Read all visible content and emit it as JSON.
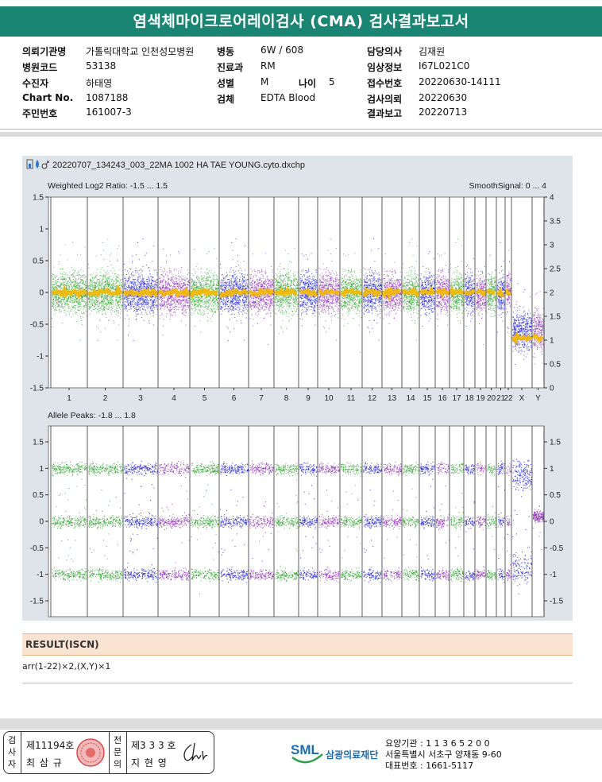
{
  "report": {
    "title": "염색체마이크로어레이검사 (CMA) 검사결과보고서"
  },
  "patient": {
    "rows": [
      [
        {
          "label": "의뢰기관명",
          "value": "가톨릭대학교 인천성모병원"
        },
        {
          "label": "병동",
          "value": "6W / 608"
        },
        {
          "label": "담당의사",
          "value": "김재원"
        }
      ],
      [
        {
          "label": "병원코드",
          "value": "53138"
        },
        {
          "label": "진료과",
          "value": "RM"
        },
        {
          "label": "임상정보",
          "value": "I67L021C0"
        }
      ],
      [
        {
          "label": "수진자",
          "value": "하태영"
        },
        {
          "label": "성별",
          "value": "M"
        },
        {
          "label": "접수번호",
          "value": "20220630-14111"
        }
      ],
      [
        {
          "label": "Chart No.",
          "value": "1087188"
        },
        {
          "label": "검체",
          "value": "EDTA Blood"
        },
        {
          "label": "검사의뢰",
          "value": "20220630"
        }
      ],
      [
        {
          "label": "주민번호",
          "value": "161007-3"
        },
        {
          "label": "",
          "value": ""
        },
        {
          "label": "결과보고",
          "value": "20220713"
        }
      ]
    ],
    "age": {
      "label": "나이",
      "value": "5"
    }
  },
  "plot": {
    "file_title": "20220707_134243_003_22MA 1002 HA TAE YOUNG.cyto.dxchp",
    "top_label": "Weighted Log2 Ratio: -1.5 ... 1.5",
    "top_right_label": "SmoothSignal: 0 ... 4",
    "bottom_label": "Allele Peaks: -1.8 ... 1.8",
    "chromosomes": [
      "1",
      "2",
      "3",
      "4",
      "5",
      "6",
      "7",
      "8",
      "9",
      "10",
      "11",
      "12",
      "13",
      "14",
      "15",
      "16",
      "17",
      "18",
      "19",
      "20",
      "21",
      "22",
      "X",
      "Y"
    ],
    "top_y_ticks": [
      "1.5",
      "1",
      "0.5",
      "0",
      "-0.5",
      "-1",
      "-1.5"
    ],
    "top_right_ticks": [
      "4",
      "3.5",
      "3",
      "2.5",
      "2",
      "1.5",
      "1",
      "0.5",
      "0"
    ],
    "bottom_y_ticks": [
      "1.5",
      "1",
      "0.5",
      "0",
      "-0.5",
      "-1",
      "-1.5"
    ],
    "bottom_right_ticks": [
      "1.5",
      "1",
      "0.5",
      "0",
      "-0.5",
      "-1",
      "-1.5"
    ],
    "colors": {
      "green": "#2ca02c",
      "purple": "#8d2bb5",
      "blue": "#1a1ad6",
      "smooth": "#f5b800"
    }
  },
  "result": {
    "heading": "RESULT(ISCN)",
    "value": "arr(1-22)×2,(X,Y)×1"
  },
  "signatures": {
    "tester_label": [
      "검",
      "사",
      "자"
    ],
    "tester_no": "제11194호",
    "tester_name": "최 삼 규",
    "specialist_label": [
      "전",
      "문",
      "의"
    ],
    "specialist_no": "제3 3 3 호",
    "specialist_name": "지 현 영"
  },
  "organization": {
    "logo_text": "SML",
    "name": "삼광의료재단",
    "code_line": "요양기관 : 1 1 3 6 5 2 0 0",
    "address": "서울특별시 서초구 양재동 9-60",
    "phone": "대표번호 : 1661-5117"
  }
}
